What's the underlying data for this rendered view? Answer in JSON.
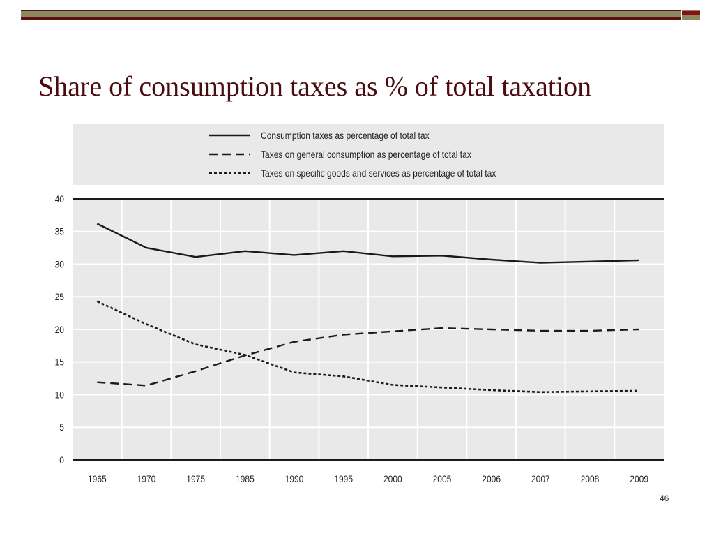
{
  "slide": {
    "title": "Share of consumption taxes as % of total taxation",
    "page_number": "46",
    "colors": {
      "title": "#4a0c10",
      "bar_dark": "#5e0f14",
      "bar_khaki": "#8c8860",
      "plot_bg": "#e9e9e9"
    }
  },
  "chart_data": {
    "type": "line",
    "title": "",
    "xlabel": "",
    "ylabel": "",
    "categories": [
      "1965",
      "1970",
      "1975",
      "1985",
      "1990",
      "1995",
      "2000",
      "2005",
      "2006",
      "2007",
      "2008",
      "2009"
    ],
    "ylim": [
      0,
      40
    ],
    "yticks": [
      "0",
      "5",
      "10",
      "15",
      "20",
      "25",
      "30",
      "35",
      "40"
    ],
    "grid": true,
    "legend_position": "top",
    "series": [
      {
        "name": "Consumption taxes as percentage of total tax",
        "style": "solid",
        "color": "#1a1a1a",
        "values": [
          36.2,
          32.5,
          31.1,
          32.0,
          31.4,
          32.0,
          31.2,
          31.3,
          30.7,
          30.2,
          30.4,
          30.6
        ]
      },
      {
        "name": "Taxes on general consumption as percentage of total tax",
        "style": "dashed",
        "color": "#1a1a1a",
        "values": [
          11.9,
          11.4,
          13.6,
          16.0,
          18.1,
          19.2,
          19.7,
          20.2,
          20.0,
          19.8,
          19.8,
          20.0
        ]
      },
      {
        "name": "Taxes on specific goods and services as percentage of total tax",
        "style": "dotted",
        "color": "#1a1a1a",
        "values": [
          24.3,
          20.8,
          17.7,
          16.1,
          13.4,
          12.8,
          11.5,
          11.1,
          10.7,
          10.4,
          10.5,
          10.6
        ]
      }
    ]
  }
}
